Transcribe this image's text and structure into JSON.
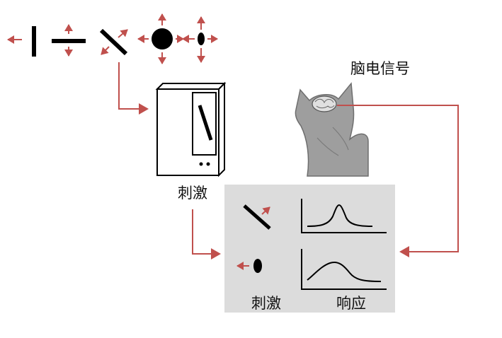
{
  "labels": {
    "brain_signal": "脑电信号",
    "stimulus_main": "刺激",
    "stimulus_panel": "刺激",
    "response_panel": "响应"
  },
  "colors": {
    "arrow_red": "#c0504d",
    "connector_red": "#c0504d",
    "panel_bg": "#dcdcdc",
    "cat_gray": "#9e9e9e",
    "ink": "#000000"
  },
  "icons": {
    "stimulus_set": [
      "vertical-bar-icon",
      "horizontal-bar-icon",
      "diagonal-bar-icon",
      "large-dot-icon",
      "small-oval-icon"
    ],
    "monitor": "crt-monitor-icon",
    "subject": "cat-silhouette-icon",
    "brain": "brain-icon"
  }
}
